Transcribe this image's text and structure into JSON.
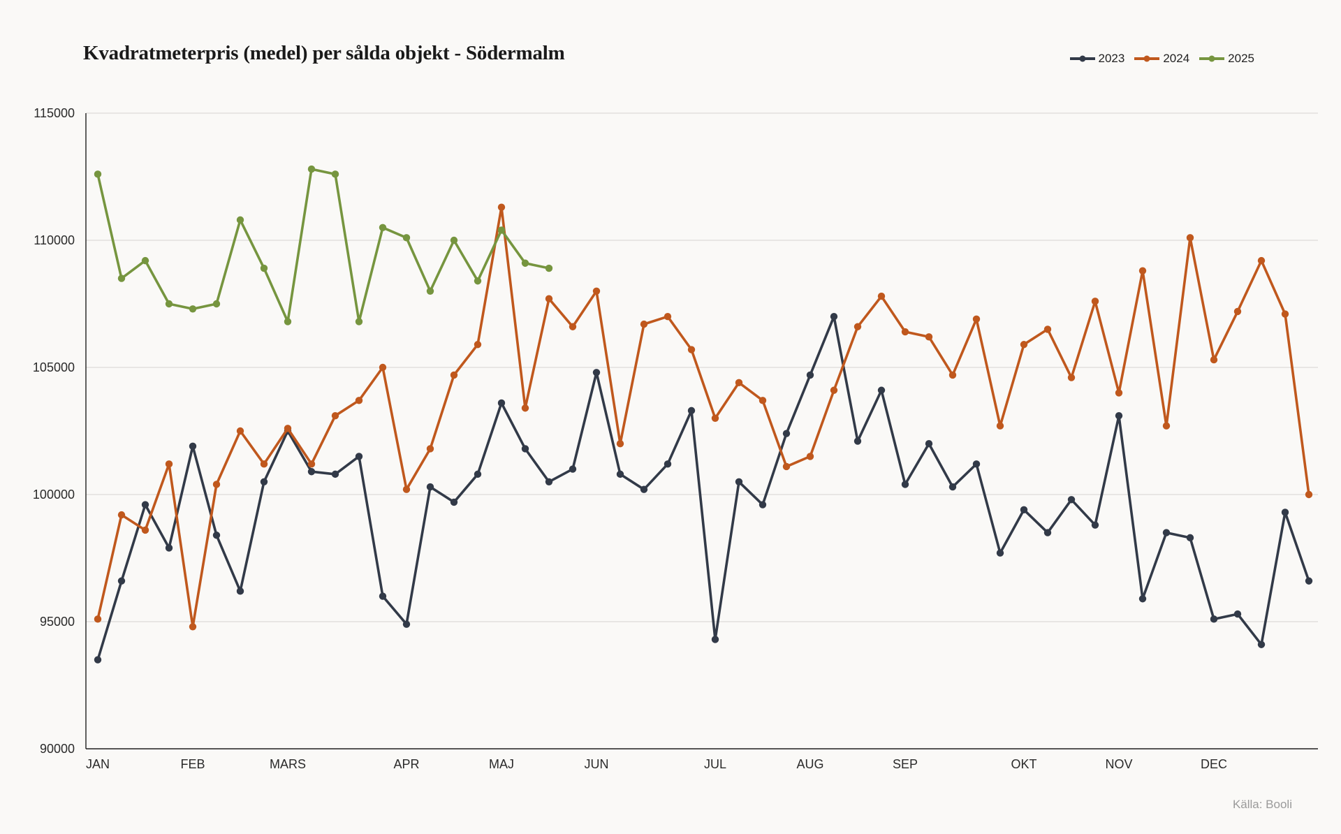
{
  "chart_data": {
    "type": "line",
    "title": "Kvadratmeterpris (medel) per sålda objekt - Södermalm",
    "source": "Källa: Booli",
    "ylim": [
      90000,
      115000
    ],
    "yticks": [
      "90000",
      "95000",
      "100000",
      "105000",
      "110000",
      "115000"
    ],
    "ytick_values": [
      90000,
      95000,
      100000,
      105000,
      110000,
      115000
    ],
    "month_labels": [
      {
        "label": "JAN",
        "week": 0
      },
      {
        "label": "FEB",
        "week": 4
      },
      {
        "label": "MARS",
        "week": 8
      },
      {
        "label": "APR",
        "week": 13
      },
      {
        "label": "MAJ",
        "week": 17
      },
      {
        "label": "JUN",
        "week": 21
      },
      {
        "label": "JUL",
        "week": 26
      },
      {
        "label": "AUG",
        "week": 30
      },
      {
        "label": "SEP",
        "week": 34
      },
      {
        "label": "OKT",
        "week": 39
      },
      {
        "label": "NOV",
        "week": 43
      },
      {
        "label": "DEC",
        "week": 47
      }
    ],
    "grid": true,
    "legend_position": "top-right",
    "series": [
      {
        "name": "2023",
        "color": "#323a48",
        "values": [
          93500,
          96600,
          99600,
          97900,
          101900,
          98400,
          96200,
          100500,
          102500,
          100900,
          100800,
          101500,
          96000,
          94900,
          100300,
          99700,
          100800,
          103600,
          101800,
          100500,
          101000,
          104800,
          100800,
          100200,
          101200,
          103300,
          94300,
          100500,
          99600,
          102400,
          104700,
          107000,
          102100,
          104100,
          100400,
          102000,
          100300,
          101200,
          97700,
          99400,
          98500,
          99800,
          98800,
          103100,
          95900,
          98500,
          98300,
          95100,
          95300,
          94100,
          99300,
          96600
        ]
      },
      {
        "name": "2024",
        "color": "#c0581d",
        "values": [
          95100,
          99200,
          98600,
          101200,
          94800,
          100400,
          102500,
          101200,
          102600,
          101200,
          103100,
          103700,
          105000,
          100200,
          101800,
          104700,
          105900,
          111300,
          103400,
          107700,
          106600,
          108000,
          102000,
          106700,
          107000,
          105700,
          103000,
          104400,
          103700,
          101100,
          101500,
          104100,
          106600,
          107800,
          106400,
          106200,
          104700,
          106900,
          102700,
          105900,
          106500,
          104600,
          107600,
          104000,
          108800,
          102700,
          110100,
          105300,
          107200,
          109200,
          107100,
          100000
        ]
      },
      {
        "name": "2025",
        "color": "#76953f",
        "values": [
          112600,
          108500,
          109200,
          107500,
          107300,
          107500,
          110800,
          108900,
          106800,
          112800,
          112600,
          106800,
          110500,
          110100,
          108000,
          110000,
          108400,
          110400,
          109100,
          108900
        ]
      }
    ]
  }
}
